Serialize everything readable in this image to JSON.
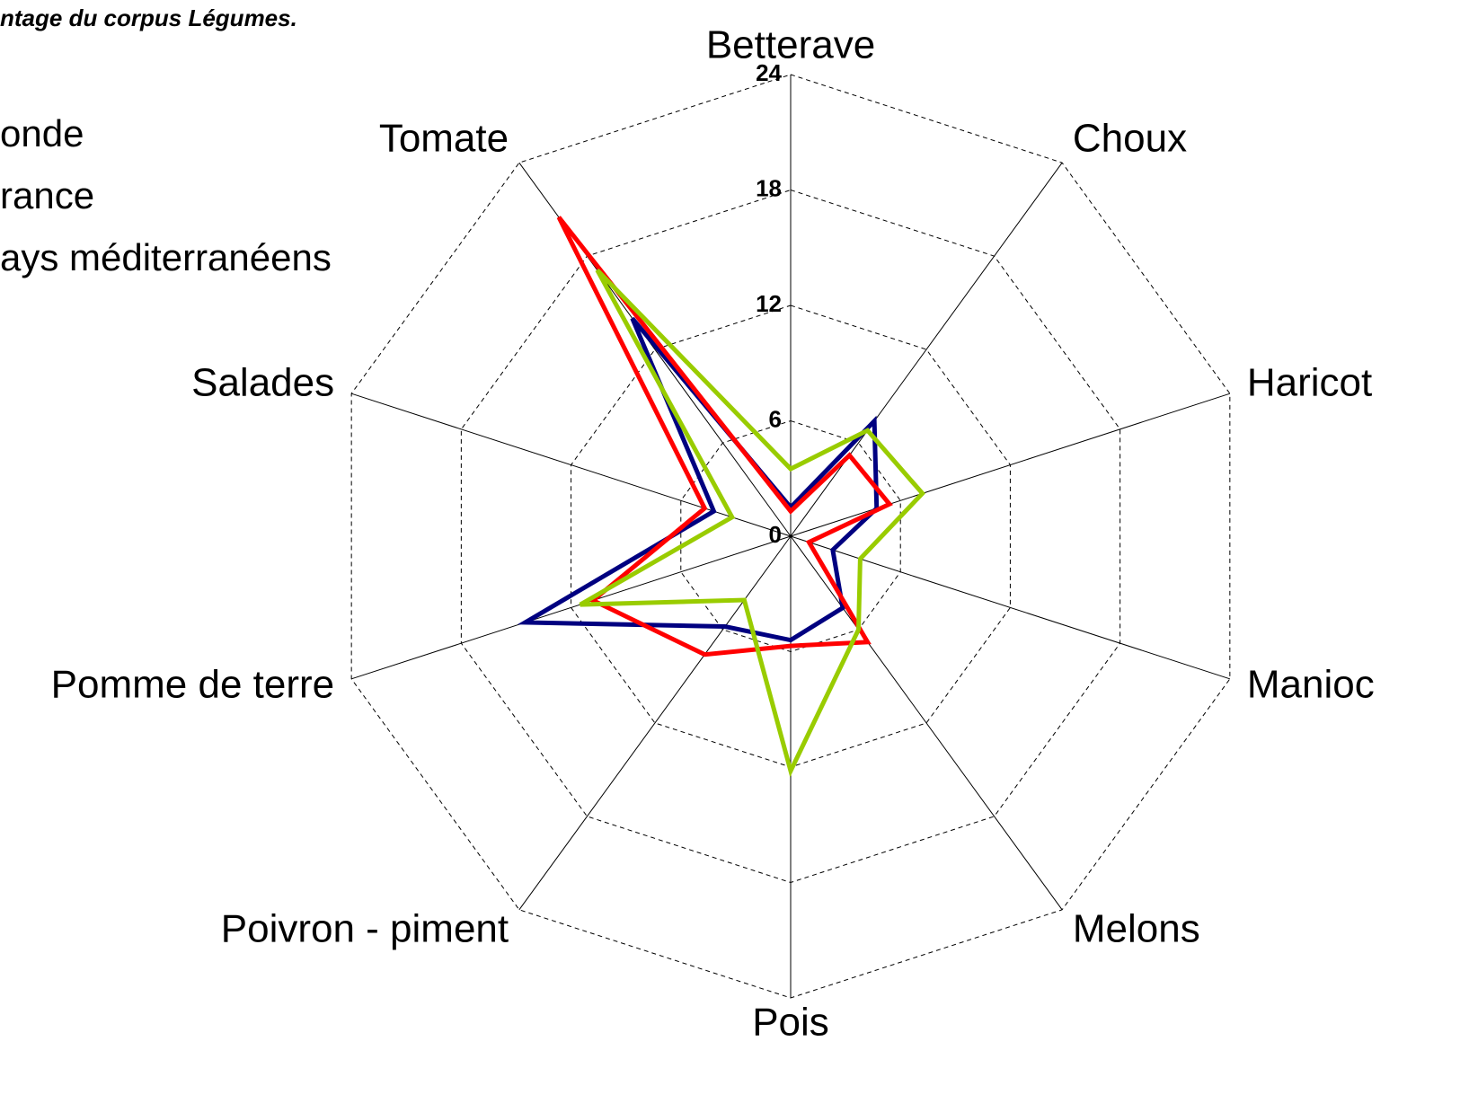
{
  "chart_data": {
    "type": "radar",
    "title": "ntage du corpus Légumes.",
    "categories": [
      "Betterave",
      "Choux",
      "Haricot",
      "Manioc",
      "Melons",
      "Pois",
      "Poivron - piment",
      "Pomme de terre",
      "Salades",
      "Tomate"
    ],
    "series": [
      {
        "name": "onde",
        "color": "#000080",
        "values": [
          1.5,
          7.4,
          4.7,
          2.3,
          4.6,
          5.4,
          5.8,
          14.5,
          4.2,
          14.0
        ]
      },
      {
        "name": "rance",
        "color": "#ff0000",
        "values": [
          1.3,
          5.2,
          5.4,
          1.0,
          6.8,
          5.7,
          7.6,
          10.8,
          4.7,
          20.5
        ]
      },
      {
        "name": "ays méditerranéens",
        "color": "#99cc00",
        "values": [
          3.5,
          6.8,
          7.2,
          3.8,
          6.0,
          12.2,
          4.1,
          11.5,
          3.2,
          17.1
        ]
      }
    ],
    "ylim": [
      0,
      24
    ],
    "yticks": [
      0,
      6,
      12,
      18,
      24
    ],
    "grid": true
  }
}
